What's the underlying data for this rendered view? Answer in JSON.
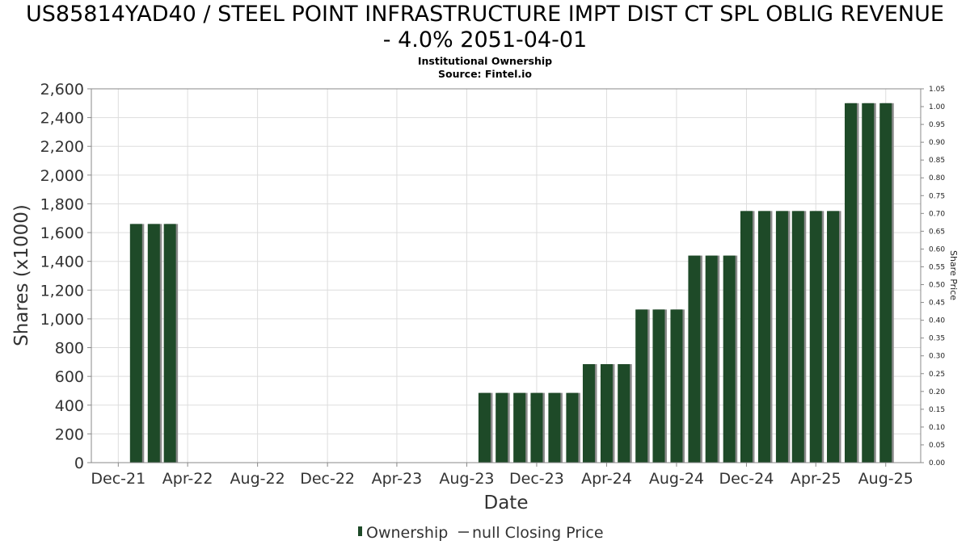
{
  "header": {
    "title_line1": "US85814YAD40 / STEEL POINT INFRASTRUCTURE IMPT DIST CT SPL OBLIG REVENUE",
    "title_line2": "- 4.0% 2051-04-01",
    "subtitle_line1": "Institutional Ownership",
    "subtitle_line2": "Source: Fintel.io"
  },
  "colors": {
    "bar": "#1e4a28",
    "bar_shadow": "#8a8a8a",
    "grid": "#dddddd",
    "frame": "#888888"
  },
  "chart_data": {
    "type": "bar",
    "xlabel": "Date",
    "ylabel": "Shares (x1000)",
    "y2label": "Share Price",
    "ylim": [
      0,
      2600
    ],
    "y2lim": [
      0,
      1.05
    ],
    "xlim": [
      "2021-10-15",
      "2025-10-01"
    ],
    "grid": true,
    "x_ticks": [
      {
        "date": "2021-12-01",
        "label": "Dec-21"
      },
      {
        "date": "2022-04-01",
        "label": "Apr-22"
      },
      {
        "date": "2022-08-01",
        "label": "Aug-22"
      },
      {
        "date": "2022-12-01",
        "label": "Dec-22"
      },
      {
        "date": "2023-04-01",
        "label": "Apr-23"
      },
      {
        "date": "2023-08-01",
        "label": "Aug-23"
      },
      {
        "date": "2023-12-01",
        "label": "Dec-23"
      },
      {
        "date": "2024-04-01",
        "label": "Apr-24"
      },
      {
        "date": "2024-08-01",
        "label": "Aug-24"
      },
      {
        "date": "2024-12-01",
        "label": "Dec-24"
      },
      {
        "date": "2025-04-01",
        "label": "Apr-25"
      },
      {
        "date": "2025-08-01",
        "label": "Aug-25"
      }
    ],
    "y_ticks": [
      "0",
      "200",
      "400",
      "600",
      "800",
      "1,000",
      "1,200",
      "1,400",
      "1,600",
      "1,800",
      "2,000",
      "2,200",
      "2,400",
      "2,600"
    ],
    "y_tick_values": [
      0,
      200,
      400,
      600,
      800,
      1000,
      1200,
      1400,
      1600,
      1800,
      2000,
      2200,
      2400,
      2600
    ],
    "y2_ticks": [
      "0.00",
      "0.05",
      "0.10",
      "0.15",
      "0.20",
      "0.25",
      "0.30",
      "0.35",
      "0.40",
      "0.45",
      "0.50",
      "0.55",
      "0.60",
      "0.65",
      "0.70",
      "0.75",
      "0.80",
      "0.85",
      "0.90",
      "0.95",
      "1.00",
      "1.05"
    ],
    "y2_tick_values": [
      0,
      0.05,
      0.1,
      0.15,
      0.2,
      0.25,
      0.3,
      0.35,
      0.4,
      0.45,
      0.5,
      0.55,
      0.6,
      0.65,
      0.7,
      0.75,
      0.8,
      0.85,
      0.9,
      0.95,
      1.0,
      1.05
    ],
    "series": [
      {
        "name": "Ownership",
        "x": [
          "2022-01-01",
          "2022-02-01",
          "2022-03-01",
          "2023-09-01",
          "2023-10-01",
          "2023-11-01",
          "2023-12-01",
          "2024-01-01",
          "2024-02-01",
          "2024-03-01",
          "2024-04-01",
          "2024-05-01",
          "2024-06-01",
          "2024-07-01",
          "2024-08-01",
          "2024-09-01",
          "2024-10-01",
          "2024-11-01",
          "2024-12-01",
          "2025-01-01",
          "2025-02-01",
          "2025-03-01",
          "2025-04-01",
          "2025-05-01",
          "2025-06-01",
          "2025-07-01",
          "2025-08-01"
        ],
        "values": [
          1660,
          1660,
          1660,
          485,
          485,
          485,
          485,
          485,
          485,
          685,
          685,
          685,
          1065,
          1065,
          1065,
          1440,
          1440,
          1440,
          1750,
          1750,
          1750,
          1750,
          1750,
          1750,
          2500,
          2500,
          2500
        ]
      }
    ],
    "legend": {
      "placement": "bottom-center",
      "items": [
        "Ownership",
        "null Closing Price"
      ]
    }
  }
}
